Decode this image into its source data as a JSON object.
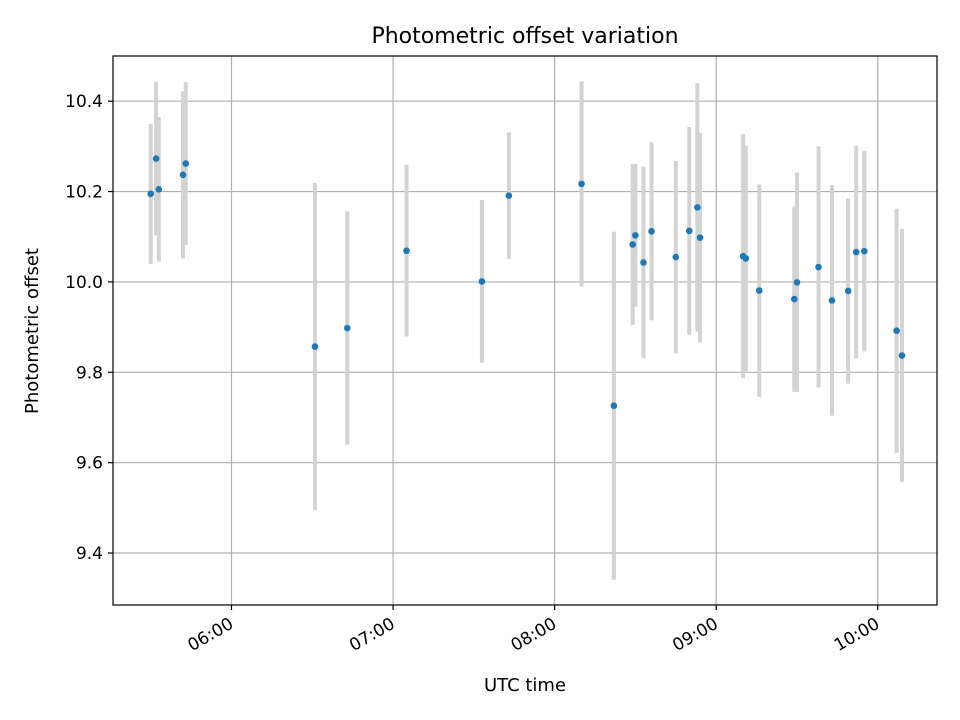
{
  "chart_data": {
    "type": "scatter",
    "title": "Photometric offset variation",
    "xlabel": "UTC time",
    "ylabel": "Photometric offset",
    "x_ticks": [
      "06:00",
      "07:00",
      "08:00",
      "09:00",
      "10:00"
    ],
    "y_ticks": [
      "9.4",
      "9.6",
      "9.8",
      "10.0",
      "10.2",
      "10.4"
    ],
    "xlim": [
      "05:16",
      "10:22"
    ],
    "ylim": [
      9.285,
      10.5
    ],
    "grid": true,
    "colors": {
      "point": "#1f77b4",
      "errorbar": "#d3d3d3"
    },
    "points": [
      {
        "x": "05:30",
        "y": 10.195,
        "err": 0.155
      },
      {
        "x": "05:32",
        "y": 10.273,
        "err": 0.17
      },
      {
        "x": "05:33",
        "y": 10.205,
        "err": 0.16
      },
      {
        "x": "05:42",
        "y": 10.237,
        "err": 0.185
      },
      {
        "x": "05:43",
        "y": 10.262,
        "err": 0.18
      },
      {
        "x": "06:31",
        "y": 9.857,
        "err": 0.362
      },
      {
        "x": "06:43",
        "y": 9.898,
        "err": 0.258
      },
      {
        "x": "07:05",
        "y": 10.069,
        "err": 0.19
      },
      {
        "x": "07:33",
        "y": 10.001,
        "err": 0.18
      },
      {
        "x": "07:43",
        "y": 10.191,
        "err": 0.14
      },
      {
        "x": "08:10",
        "y": 10.217,
        "err": 0.227
      },
      {
        "x": "08:22",
        "y": 9.726,
        "err": 0.385
      },
      {
        "x": "08:29",
        "y": 10.083,
        "err": 0.178
      },
      {
        "x": "08:30",
        "y": 10.103,
        "err": 0.158
      },
      {
        "x": "08:33",
        "y": 10.043,
        "err": 0.212
      },
      {
        "x": "08:36",
        "y": 10.112,
        "err": 0.197
      },
      {
        "x": "08:45",
        "y": 10.055,
        "err": 0.213
      },
      {
        "x": "08:50",
        "y": 10.113,
        "err": 0.23
      },
      {
        "x": "08:53",
        "y": 10.165,
        "err": 0.275
      },
      {
        "x": "08:54",
        "y": 10.098,
        "err": 0.232
      },
      {
        "x": "09:10",
        "y": 10.057,
        "err": 0.27
      },
      {
        "x": "09:11",
        "y": 10.052,
        "err": 0.25
      },
      {
        "x": "09:16",
        "y": 9.981,
        "err": 0.235
      },
      {
        "x": "09:29",
        "y": 9.962,
        "err": 0.205
      },
      {
        "x": "09:30",
        "y": 9.999,
        "err": 0.243
      },
      {
        "x": "09:38",
        "y": 10.033,
        "err": 0.267
      },
      {
        "x": "09:43",
        "y": 9.959,
        "err": 0.255
      },
      {
        "x": "09:49",
        "y": 9.98,
        "err": 0.205
      },
      {
        "x": "09:52",
        "y": 10.066,
        "err": 0.235
      },
      {
        "x": "09:55",
        "y": 10.068,
        "err": 0.222
      },
      {
        "x": "10:07",
        "y": 9.892,
        "err": 0.27
      },
      {
        "x": "10:09",
        "y": 9.837,
        "err": 0.28
      }
    ]
  }
}
